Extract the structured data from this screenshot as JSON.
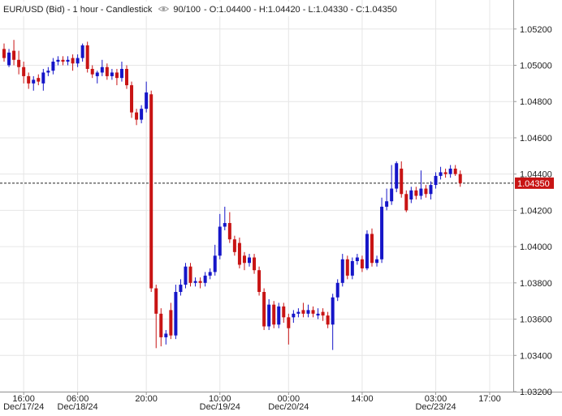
{
  "chart_data": {
    "type": "candlestick",
    "title": "EUR/USD (Bid) - 1 hour - Candlestick",
    "count": "90/100",
    "ohlc_text": "- O:1.04400 - H:1.04420 - L:1.04330 - C:1.04350",
    "up_color": "#1515c8",
    "down_color": "#c81414",
    "grid": true,
    "ylim": [
      1.032,
      1.0536
    ],
    "yticks": [
      {
        "value": 1.052,
        "label": "1.05200"
      },
      {
        "value": 1.05,
        "label": "1.05000"
      },
      {
        "value": 1.048,
        "label": "1.04800"
      },
      {
        "value": 1.046,
        "label": "1.04600"
      },
      {
        "value": 1.044,
        "label": "1.04400"
      },
      {
        "value": 1.042,
        "label": "1.04200"
      },
      {
        "value": 1.04,
        "label": "1.04000"
      },
      {
        "value": 1.038,
        "label": "1.03800"
      },
      {
        "value": 1.036,
        "label": "1.03600"
      },
      {
        "value": 1.034,
        "label": "1.03400"
      },
      {
        "value": 1.032,
        "label": "1.03200"
      }
    ],
    "last_price": 1.0435,
    "last_price_label": "1.04350",
    "categories": [
      null,
      null,
      null,
      null,
      "16:00",
      null,
      null,
      null,
      null,
      null,
      null,
      null,
      null,
      null,
      null,
      "06:00",
      null,
      null,
      null,
      null,
      null,
      null,
      null,
      null,
      null,
      null,
      null,
      null,
      null,
      "20:00",
      null,
      null,
      null,
      null,
      null,
      null,
      null,
      null,
      null,
      null,
      null,
      null,
      null,
      null,
      "10:00",
      null,
      null,
      null,
      null,
      null,
      null,
      null,
      null,
      null,
      null,
      null,
      null,
      null,
      "00:00",
      null,
      null,
      null,
      null,
      null,
      null,
      null,
      null,
      null,
      null,
      null,
      null,
      null,
      null,
      "14:00",
      null,
      null,
      null,
      null,
      null,
      null,
      null,
      null,
      null,
      null,
      null,
      null,
      null,
      null,
      "03:00",
      null,
      null,
      null,
      null,
      null,
      null,
      null,
      null,
      null,
      null,
      "17:00"
    ],
    "category_dates": [
      null,
      null,
      null,
      null,
      "Dec/17/24",
      null,
      null,
      null,
      null,
      null,
      null,
      null,
      null,
      null,
      null,
      "Dec/18/24",
      null,
      null,
      null,
      null,
      null,
      null,
      null,
      null,
      null,
      null,
      null,
      null,
      null,
      null,
      null,
      null,
      null,
      null,
      null,
      null,
      null,
      null,
      null,
      null,
      null,
      null,
      null,
      null,
      "Dec/19/24",
      null,
      null,
      null,
      null,
      null,
      null,
      null,
      null,
      null,
      null,
      null,
      null,
      null,
      "Dec/20/24",
      null,
      null,
      null,
      null,
      null,
      null,
      null,
      null,
      null,
      null,
      null,
      null,
      null,
      null,
      null,
      null,
      null,
      null,
      null,
      null,
      null,
      null,
      null,
      null,
      null,
      null,
      null,
      null,
      null,
      "Dec/23/24",
      null,
      null,
      null,
      null,
      null,
      null,
      null,
      null,
      null,
      null,
      null
    ],
    "open": [
      1.0509,
      1.05,
      1.0508,
      1.0503,
      1.0499,
      1.0494,
      1.049,
      1.0493,
      1.049,
      1.0496,
      1.0497,
      1.0502,
      1.0503,
      1.0502,
      1.0504,
      1.0501,
      1.0504,
      1.0511,
      1.0498,
      1.0494,
      1.0496,
      1.0499,
      1.0494,
      1.0496,
      1.0493,
      1.0498,
      1.0489,
      1.0474,
      1.047,
      1.0476,
      1.0484,
      1.0377,
      1.0363,
      1.035,
      1.0365,
      1.0351,
      1.0375,
      1.0379,
      1.0389,
      1.038,
      1.0381,
      1.038,
      1.0384,
      1.0386,
      1.0395,
      1.0411,
      1.0413,
      1.0404,
      1.0402,
      1.0395,
      1.0391,
      1.0394,
      1.0387,
      1.0375,
      1.0356,
      1.0368,
      1.0357,
      1.0367,
      1.0361,
      1.0361,
      1.0363,
      1.0365,
      1.0363,
      1.0365,
      1.0362,
      1.0364,
      1.0362,
      1.0357,
      1.0372,
      1.038,
      1.0393,
      1.0384,
      1.0392,
      1.0393,
      1.0388,
      1.0407,
      1.0391,
      1.0393,
      1.0422,
      1.0425,
      1.0432,
      1.0443,
      1.0429,
      1.0426,
      1.0431,
      1.0428,
      1.0432,
      1.0429,
      1.0434,
      1.0439,
      1.0441,
      1.044,
      1.0443,
      1.044,
      null,
      null,
      null,
      null,
      null,
      null
    ],
    "high": [
      1.0512,
      1.0509,
      1.0514,
      1.0508,
      1.0502,
      1.0496,
      1.0494,
      1.0495,
      1.0498,
      1.0499,
      1.0504,
      1.0505,
      1.0505,
      1.0505,
      1.0506,
      1.0506,
      1.0512,
      1.0513,
      1.05,
      1.0497,
      1.0503,
      1.0501,
      1.0498,
      1.0498,
      1.0502,
      1.05,
      1.0491,
      1.0476,
      1.0478,
      1.0491,
      1.0486,
      1.0379,
      1.0366,
      1.0354,
      1.0369,
      1.0379,
      1.0382,
      1.0391,
      1.0391,
      1.0383,
      1.0383,
      1.0386,
      1.0388,
      1.0401,
      1.0418,
      1.0422,
      1.0419,
      1.0406,
      1.0405,
      1.0397,
      1.0396,
      1.0396,
      1.0389,
      1.0377,
      1.0371,
      1.037,
      1.0369,
      1.0369,
      1.0363,
      1.0365,
      1.0366,
      1.0369,
      1.0368,
      1.0367,
      1.0366,
      1.0366,
      1.0364,
      1.0374,
      1.0382,
      1.0396,
      1.0395,
      1.0394,
      1.0396,
      1.0395,
      1.0409,
      1.041,
      1.0395,
      1.0427,
      1.0432,
      1.0445,
      1.0447,
      1.0447,
      1.0431,
      1.0433,
      1.0433,
      1.0442,
      1.0434,
      1.0436,
      1.0441,
      1.0444,
      1.0443,
      1.0445,
      1.0445,
      1.0442,
      null,
      null,
      null,
      null,
      null,
      null
    ],
    "low": [
      1.0502,
      1.0499,
      1.05,
      1.0495,
      1.049,
      1.0487,
      1.0486,
      1.0489,
      1.0486,
      1.0494,
      1.0495,
      1.05,
      1.05,
      1.05,
      1.0497,
      1.0499,
      1.0502,
      1.0496,
      1.0493,
      1.049,
      1.0494,
      1.0492,
      1.0492,
      1.0489,
      1.0491,
      1.0487,
      1.0471,
      1.0467,
      1.0468,
      1.0474,
      1.0375,
      1.0344,
      1.0345,
      1.0346,
      1.0349,
      1.0349,
      1.0373,
      1.0377,
      1.0378,
      1.0378,
      1.0377,
      1.0378,
      1.0382,
      1.0384,
      1.0393,
      1.0409,
      1.0402,
      1.0395,
      1.0388,
      1.0387,
      1.0389,
      1.0385,
      1.0373,
      1.0354,
      1.0354,
      1.0355,
      1.0355,
      1.0358,
      1.0346,
      1.0358,
      1.0361,
      1.0361,
      1.0361,
      1.0361,
      1.036,
      1.0359,
      1.0355,
      1.0343,
      1.037,
      1.0378,
      1.0382,
      1.0382,
      1.039,
      1.0386,
      1.0387,
      1.0389,
      1.0389,
      1.0391,
      1.042,
      1.0423,
      1.043,
      1.0427,
      1.0419,
      1.0424,
      1.0426,
      1.0426,
      1.0427,
      1.0426,
      1.0432,
      1.0437,
      1.0438,
      1.0438,
      1.0439,
      1.0433,
      null,
      null,
      null,
      null,
      null,
      null
    ],
    "close": [
      1.0504,
      1.0507,
      1.0503,
      1.0499,
      1.0494,
      1.049,
      1.0492,
      1.0491,
      1.0496,
      1.0497,
      1.0502,
      1.0503,
      1.0502,
      1.0503,
      1.0501,
      1.0504,
      1.0511,
      1.0498,
      1.0495,
      1.0496,
      1.0499,
      1.0494,
      1.0496,
      1.0493,
      1.0498,
      1.0489,
      1.0474,
      1.047,
      1.0476,
      1.0485,
      1.0377,
      1.0363,
      1.035,
      1.0352,
      1.0351,
      1.0375,
      1.0379,
      1.0389,
      1.038,
      1.0381,
      1.038,
      1.0384,
      1.0386,
      1.0395,
      1.0411,
      1.0413,
      1.0404,
      1.0397,
      1.039,
      1.0391,
      1.0394,
      1.0387,
      1.0375,
      1.0356,
      1.0368,
      1.0357,
      1.0367,
      1.0361,
      1.0355,
      1.0363,
      1.0364,
      1.0363,
      1.0365,
      1.0363,
      1.0363,
      1.0362,
      1.0357,
      1.0372,
      1.038,
      1.0393,
      1.0384,
      1.0392,
      1.0394,
      1.0388,
      1.0407,
      1.0391,
      1.0393,
      1.0422,
      1.0425,
      1.0432,
      1.0446,
      1.0429,
      1.042,
      1.0431,
      1.0428,
      1.0432,
      1.0429,
      1.0434,
      1.0439,
      1.0441,
      1.044,
      1.0443,
      1.044,
      1.0435,
      null,
      null,
      null,
      null,
      null,
      null
    ]
  }
}
